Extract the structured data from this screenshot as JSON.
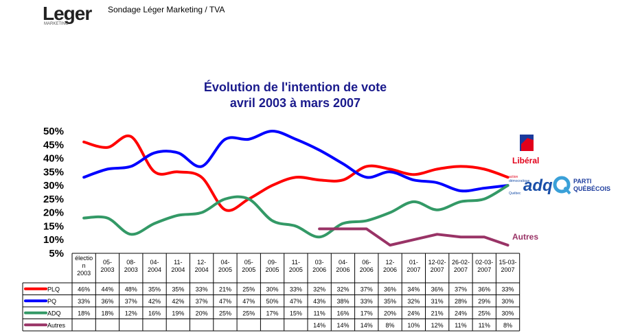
{
  "header": {
    "logo_text": "Leger",
    "logo_sub": "MARKETING",
    "title": "Sondage Léger Marketing / TVA"
  },
  "chart_data": {
    "type": "line",
    "title": "Évolution de l'intention de vote",
    "subtitle": "avril 2003 à mars 2007",
    "categories": [
      [
        "élection",
        "2003"
      ],
      [
        "05-",
        "2003"
      ],
      [
        "08-",
        "2003"
      ],
      [
        "04-",
        "2004"
      ],
      [
        "11-",
        "2004"
      ],
      [
        "12-",
        "2004"
      ],
      [
        "04-",
        "2005"
      ],
      [
        "05-",
        "2005"
      ],
      [
        "09-",
        "2005"
      ],
      [
        "11-",
        "2005"
      ],
      [
        "03-",
        "2006"
      ],
      [
        "04-",
        "2006"
      ],
      [
        "06-",
        "2006"
      ],
      [
        "12-",
        "2006"
      ],
      [
        "01-",
        "2007"
      ],
      [
        "12-02-",
        "2007"
      ],
      [
        "26-02-",
        "2007"
      ],
      [
        "02-03-",
        "2007"
      ],
      [
        "15-03-",
        "2007"
      ]
    ],
    "ylim": [
      5,
      50
    ],
    "yticks": [
      "50%",
      "45%",
      "40%",
      "35%",
      "30%",
      "25%",
      "20%",
      "15%",
      "10%",
      "5%"
    ],
    "grid": false,
    "series": [
      {
        "name": "PLQ",
        "color": "#ff0000",
        "values": [
          46,
          44,
          48,
          35,
          35,
          33,
          21,
          25,
          30,
          33,
          32,
          32,
          37,
          36,
          34,
          36,
          37,
          36,
          33
        ],
        "labels": [
          "46%",
          "44%",
          "48%",
          "35%",
          "35%",
          "33%",
          "21%",
          "25%",
          "30%",
          "33%",
          "32%",
          "32%",
          "37%",
          "36%",
          "34%",
          "36%",
          "37%",
          "36%",
          "33%"
        ]
      },
      {
        "name": "PQ",
        "color": "#0000ff",
        "values": [
          33,
          36,
          37,
          42,
          42,
          37,
          47,
          47,
          50,
          47,
          43,
          38,
          33,
          35,
          32,
          31,
          28,
          29,
          30
        ],
        "labels": [
          "33%",
          "36%",
          "37%",
          "42%",
          "42%",
          "37%",
          "47%",
          "47%",
          "50%",
          "47%",
          "43%",
          "38%",
          "33%",
          "35%",
          "32%",
          "31%",
          "28%",
          "29%",
          "30%"
        ]
      },
      {
        "name": "ADQ",
        "color": "#339966",
        "values": [
          18,
          18,
          12,
          16,
          19,
          20,
          25,
          25,
          17,
          15,
          11,
          16,
          17,
          20,
          24,
          21,
          24,
          25,
          30
        ],
        "labels": [
          "18%",
          "18%",
          "12%",
          "16%",
          "19%",
          "20%",
          "25%",
          "25%",
          "17%",
          "15%",
          "11%",
          "16%",
          "17%",
          "20%",
          "24%",
          "21%",
          "24%",
          "25%",
          "30%"
        ]
      },
      {
        "name": "Autres",
        "color": "#993366",
        "values": [
          null,
          null,
          null,
          null,
          null,
          null,
          null,
          null,
          null,
          null,
          14,
          14,
          14,
          8,
          10,
          12,
          11,
          11,
          8
        ],
        "labels": [
          "",
          "",
          "",
          "",
          "",
          "",
          "",
          "",
          "",
          "",
          "14%",
          "14%",
          "14%",
          "8%",
          "10%",
          "12%",
          "11%",
          "11%",
          "8%"
        ]
      }
    ],
    "side_labels": {
      "liberal": "Libéral",
      "adq": "adq",
      "adq_sub1": "action",
      "adq_sub2": "démocratique",
      "adq_sub3": "Québec",
      "pq1": "PARTI",
      "pq2": "QUÉBÉCOIS",
      "autres": "Autres"
    },
    "colors": {
      "title": "#1a1a8c",
      "liberal": "#e2001a",
      "liberal_flag": "#1a3a9c",
      "adq": "#1a4fa8",
      "adq_accent": "#e2001a",
      "pq": "#1a3a9c",
      "pq_q": "#3aa0d8",
      "autres": "#993366"
    }
  }
}
